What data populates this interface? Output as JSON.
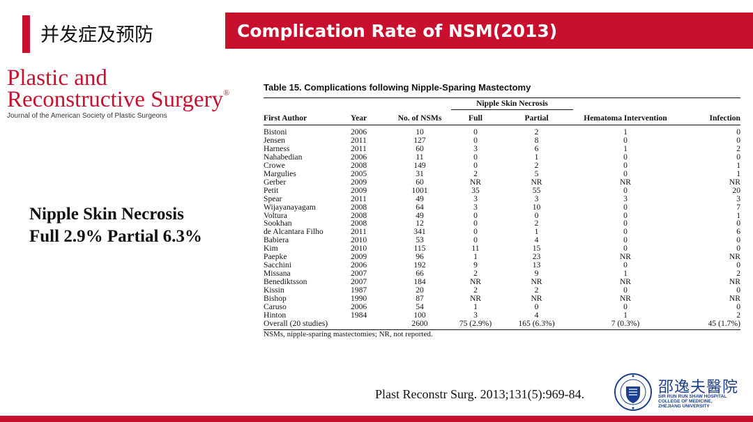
{
  "header": {
    "cn_title": "并发症及预防",
    "en_title": "Complication Rate of NSM(2013)",
    "accent_color": "#c8102e"
  },
  "journal": {
    "line1": "Plastic and",
    "line2": "Reconstructive Surgery",
    "registered": "®",
    "subtitle": "Journal of the American Society of Plastic Surgeons"
  },
  "summary": {
    "line1": "Nipple Skin Necrosis",
    "line2": "Full 2.9% Partial 6.3%"
  },
  "table": {
    "caption": "Table 15.  Complications following Nipple-Sparing Mastectomy",
    "group_header": "Nipple Skin Necrosis",
    "columns": [
      "First Author",
      "Year",
      "No. of NSMs",
      "Full",
      "Partial",
      "Hematoma Intervention",
      "Infection"
    ],
    "rows": [
      [
        "Bistoni",
        "2006",
        "10",
        "0",
        "2",
        "1",
        "0"
      ],
      [
        "Jensen",
        "2011",
        "127",
        "0",
        "8",
        "0",
        "0"
      ],
      [
        "Harness",
        "2011",
        "60",
        "3",
        "6",
        "1",
        "2"
      ],
      [
        "Nahabedian",
        "2006",
        "11",
        "0",
        "1",
        "0",
        "0"
      ],
      [
        "Crowe",
        "2008",
        "149",
        "0",
        "2",
        "0",
        "1"
      ],
      [
        "Margulies",
        "2005",
        "31",
        "2",
        "5",
        "0",
        "1"
      ],
      [
        "Gerber",
        "2009",
        "60",
        "NR",
        "NR",
        "NR",
        "NR"
      ],
      [
        "Petit",
        "2009",
        "1001",
        "35",
        "55",
        "0",
        "20"
      ],
      [
        "Spear",
        "2011",
        "49",
        "3",
        "3",
        "3",
        "3"
      ],
      [
        "Wijayanayagam",
        "2008",
        "64",
        "3",
        "10",
        "0",
        "7"
      ],
      [
        "Voltura",
        "2008",
        "49",
        "0",
        "0",
        "0",
        "1"
      ],
      [
        "Sookhan",
        "2008",
        "12",
        "0",
        "2",
        "0",
        "0"
      ],
      [
        "de Alcantara Filho",
        "2011",
        "341",
        "0",
        "1",
        "0",
        "6"
      ],
      [
        "Babiera",
        "2010",
        "53",
        "0",
        "4",
        "0",
        "0"
      ],
      [
        "Kim",
        "2010",
        "115",
        "11",
        "15",
        "0",
        "0"
      ],
      [
        "Paepke",
        "2009",
        "96",
        "1",
        "23",
        "NR",
        "NR"
      ],
      [
        "Sacchini",
        "2006",
        "192",
        "9",
        "13",
        "0",
        "0"
      ],
      [
        "Missana",
        "2007",
        "66",
        "2",
        "9",
        "1",
        "2"
      ],
      [
        "Benediktsson",
        "2007",
        "184",
        "NR",
        "NR",
        "NR",
        "NR"
      ],
      [
        "Kissin",
        "1987",
        "20",
        "2",
        "2",
        "0",
        "0"
      ],
      [
        "Bishop",
        "1990",
        "87",
        "NR",
        "NR",
        "NR",
        "NR"
      ],
      [
        "Caruso",
        "2006",
        "54",
        "1",
        "0",
        "0",
        "0"
      ],
      [
        "Hinton",
        "1984",
        "100",
        "3",
        "4",
        "1",
        "2"
      ]
    ],
    "overall": [
      "Overall (20 studies)",
      "",
      "2600",
      "75 (2.9%)",
      "165 (6.3%)",
      "7 (0.3%)",
      "45 (1.7%)"
    ],
    "footnote": "NSMs, nipple-sparing mastectomies; NR, not reported."
  },
  "citation": "Plast Reconstr Surg. 2013;131(5):969-84.",
  "hospital": {
    "name_cn": "邵逸夫醫院",
    "name_en_1": "SIR RUN RUN SHAW HOSPITAL",
    "name_en_2": "COLLEGE OF MEDICINE,",
    "name_en_3": "ZHEJIANG UNIVERSITY",
    "brand_color": "#1c3f8f"
  }
}
